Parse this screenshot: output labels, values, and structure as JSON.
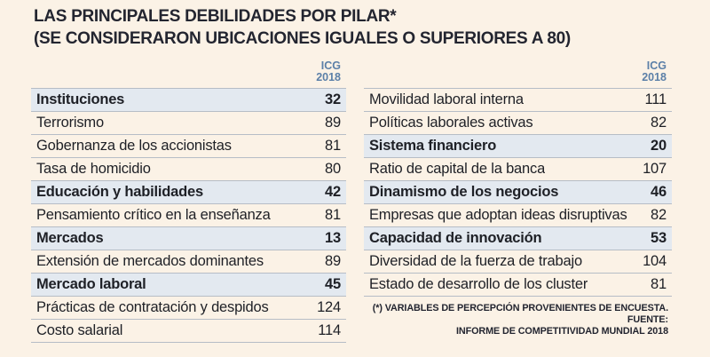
{
  "title": {
    "line1": "LAS PRINCIPALES DEBILIDADES POR PILAR*",
    "line2": "(SE CONSIDERARON UBICACIONES IGUALES O SUPERIORES A 80)"
  },
  "table": {
    "value_header": {
      "line1": "ICG",
      "line2": "2018"
    },
    "columns": [
      {
        "rows": [
          {
            "label": "Instituciones",
            "value": "32",
            "pillar": true
          },
          {
            "label": "Terrorismo",
            "value": "89",
            "pillar": false
          },
          {
            "label": "Gobernanza de los accionistas",
            "value": "81",
            "pillar": false
          },
          {
            "label": "Tasa de homicidio",
            "value": "80",
            "pillar": false
          },
          {
            "label": "Educación y habilidades",
            "value": "42",
            "pillar": true
          },
          {
            "label": "Pensamiento crítico en la enseñanza",
            "value": "81",
            "pillar": false
          },
          {
            "label": "Mercados",
            "value": "13",
            "pillar": true
          },
          {
            "label": "Extensión de mercados dominantes",
            "value": "89",
            "pillar": false
          },
          {
            "label": "Mercado laboral",
            "value": "45",
            "pillar": true
          },
          {
            "label": "Prácticas de contratación y despidos",
            "value": "124",
            "pillar": false
          },
          {
            "label": "Costo salarial",
            "value": "114",
            "pillar": false
          }
        ]
      },
      {
        "rows": [
          {
            "label": "Movilidad laboral interna",
            "value": "111",
            "pillar": false
          },
          {
            "label": "Políticas laborales activas",
            "value": "82",
            "pillar": false
          },
          {
            "label": "Sistema financiero",
            "value": "20",
            "pillar": true
          },
          {
            "label": "Ratio de capital de la banca",
            "value": "107",
            "pillar": false
          },
          {
            "label": "Dinamismo de los negocios",
            "value": "46",
            "pillar": true
          },
          {
            "label": "Empresas que adoptan ideas disruptivas",
            "value": "82",
            "pillar": false
          },
          {
            "label": "Capacidad de innovación",
            "value": "53",
            "pillar": true
          },
          {
            "label": "Diversidad de la fuerza de trabajo",
            "value": "104",
            "pillar": false
          },
          {
            "label": "Estado de desarrollo de los cluster",
            "value": "81",
            "pillar": false
          }
        ]
      }
    ]
  },
  "footnote": {
    "line1": "(*) VARIABLES DE PERCEPCIÓN PROVENIENTES DE ENCUESTA. FUENTE:",
    "line2": "INFORME DE COMPETITIVIDAD MUNDIAL 2018"
  },
  "colors": {
    "background": "#FBF2E6",
    "title_text": "#232530",
    "row_text": "#1E2026",
    "pillar_highlight": "#E3E9F0",
    "header_blue": "#5C80A8",
    "row_border": "#B6BDC6"
  },
  "chart_data": {
    "type": "table",
    "title": "LAS PRINCIPALES DEBILIDADES POR PILAR* (SE CONSIDERARON UBICACIONES IGUALES O SUPERIORES A 80)",
    "value_column": "ICG 2018",
    "categories": [
      "Instituciones",
      "Terrorismo",
      "Gobernanza de los accionistas",
      "Tasa de homicidio",
      "Educación y habilidades",
      "Pensamiento crítico en la enseñanza",
      "Mercados",
      "Extensión de mercados dominantes",
      "Mercado laboral",
      "Prácticas de contratación y despidos",
      "Costo salarial",
      "Movilidad laboral interna",
      "Políticas laborales activas",
      "Sistema financiero",
      "Ratio de capital de la banca",
      "Dinamismo de los negocios",
      "Empresas que adoptan ideas disruptivas",
      "Capacidad de innovación",
      "Diversidad de la fuerza de trabajo",
      "Estado de desarrollo de los cluster"
    ],
    "values": [
      32,
      89,
      81,
      80,
      42,
      81,
      13,
      89,
      45,
      124,
      114,
      111,
      82,
      20,
      107,
      46,
      82,
      53,
      104,
      81
    ],
    "pillar_rows": [
      "Instituciones",
      "Educación y habilidades",
      "Mercados",
      "Mercado laboral",
      "Sistema financiero",
      "Dinamismo de los negocios",
      "Capacidad de innovación"
    ],
    "footnote": "(*) VARIABLES DE PERCEPCIÓN PROVENIENTES DE ENCUESTA. FUENTE: INFORME DE COMPETITIVIDAD MUNDIAL 2018"
  }
}
